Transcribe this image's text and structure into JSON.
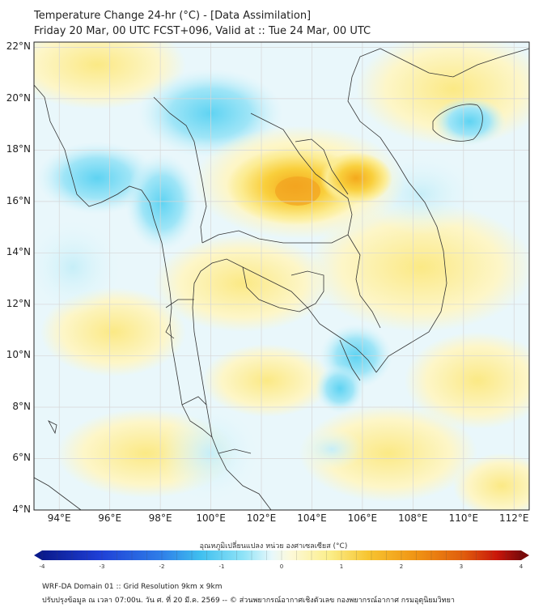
{
  "header": {
    "title_line1": "Temperature Change 24-hr (°C) - [Data Assimilation]",
    "title_line2": "Friday 20 Mar, 00 UTC FCST+096, Valid at :: Tue 24 Mar, 00 UTC"
  },
  "map": {
    "lat_labels": [
      "22°N",
      "20°N",
      "18°N",
      "16°N",
      "14°N",
      "12°N",
      "10°N",
      "8°N",
      "6°N",
      "4°N"
    ],
    "lon_labels": [
      "94°E",
      "96°E",
      "98°E",
      "100°E",
      "102°E",
      "104°E",
      "106°E",
      "108°E",
      "110°E",
      "112°E"
    ],
    "lat_range": [
      4,
      22.2
    ],
    "lon_range": [
      93,
      112.6
    ]
  },
  "colorbar": {
    "label": "อุณหภูมิเปลี่ยนแปลง หน่วย องศาเซลเซียส (°C)",
    "ticks": [
      "-4",
      "-3",
      "-2",
      "-1",
      "0",
      "1",
      "2",
      "3",
      "4"
    ],
    "range": [
      -4,
      4
    ],
    "colors": [
      "#0a1a8c",
      "#1f3fd6",
      "#2f7fe8",
      "#3fbfef",
      "#8fe3f7",
      "#e8f8fb",
      "#ffffff",
      "#fdf9d8",
      "#fbee8a",
      "#f7c531",
      "#f09414",
      "#e05d0d",
      "#c9160a",
      "#7a0a0a"
    ]
  },
  "footer": {
    "line1": "WRF-DA Domain 01 :: Grid Resolution 9km x 9km",
    "line2": "ปรับปรุงข้อมูล ณ เวลา 07:00น. วัน ศ. ที่ 20 มี.ค. 2569 -- © ส่วนพยากรณ์อากาศเชิงตัวเลข กองพยากรณ์อากาศ กรมอุตุนิยมวิทยา"
  }
}
